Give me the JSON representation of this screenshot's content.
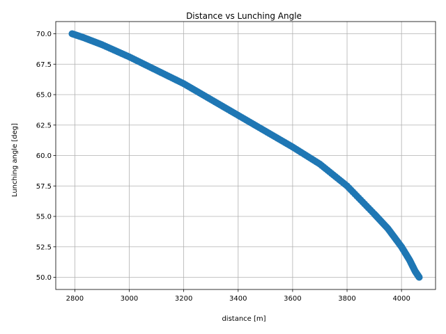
{
  "chart_data": {
    "type": "scatter",
    "title": "Distance vs Lunching Angle",
    "xlabel": "distance [m]",
    "ylabel": "Lunching angle [deg]",
    "xlim": [
      2730,
      4125
    ],
    "ylim": [
      49.0,
      71.0
    ],
    "xticks": [
      "2800",
      "3000",
      "3200",
      "3400",
      "3600",
      "3800",
      "4000"
    ],
    "yticks": [
      "50.0",
      "52.5",
      "55.0",
      "57.5",
      "60.0",
      "62.5",
      "65.0",
      "67.5",
      "70.0"
    ],
    "grid": true,
    "series": [
      {
        "color": "#1f77b4",
        "marker": "circle",
        "points": [
          [
            2790,
            70.0
          ],
          [
            2830,
            69.7
          ],
          [
            2900,
            69.1
          ],
          [
            3000,
            68.1
          ],
          [
            3100,
            67.0
          ],
          [
            3200,
            65.9
          ],
          [
            3300,
            64.6
          ],
          [
            3400,
            63.3
          ],
          [
            3500,
            62.0
          ],
          [
            3600,
            60.7
          ],
          [
            3700,
            59.3
          ],
          [
            3800,
            57.5
          ],
          [
            3900,
            55.2
          ],
          [
            3950,
            54.0
          ],
          [
            4000,
            52.5
          ],
          [
            4030,
            51.4
          ],
          [
            4050,
            50.5
          ],
          [
            4065,
            50.0
          ]
        ]
      }
    ]
  }
}
